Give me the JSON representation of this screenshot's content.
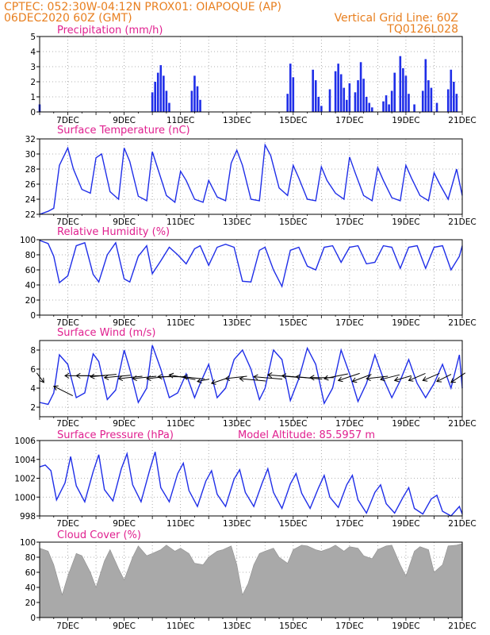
{
  "header": {
    "line1": "CPTEC:  052:30W-04:12N  PROX01: OIAPOQUE (AP)",
    "line2": "06DEC2020 60Z (GMT)",
    "vgrid": "Vertical Grid Line: 60Z",
    "code": "TQ0126L028"
  },
  "colors": {
    "header": "#e87f1f",
    "title": "#e0208f",
    "series": "#1f2ee8",
    "cloud": "#a9a9a9"
  },
  "x_axis": {
    "days": [
      "7DEC",
      "9DEC",
      "11DEC",
      "13DEC",
      "15DEC",
      "17DEC",
      "19DEC",
      "21DEC"
    ],
    "start_day": 6.0,
    "end_day": 21.0
  },
  "chart_data": [
    {
      "id": "precip",
      "type": "bar",
      "title": "Precipitation (mm/h)",
      "ylim": [
        0,
        5
      ],
      "yticks": [
        "0",
        "1",
        "2",
        "3",
        "4",
        "5"
      ],
      "x_days": [
        6.0,
        10.0,
        10.1,
        10.2,
        10.3,
        10.4,
        10.5,
        10.6,
        11.4,
        11.5,
        11.6,
        11.7,
        14.8,
        14.9,
        15.0,
        15.7,
        15.8,
        15.9,
        16.0,
        16.3,
        16.5,
        16.6,
        16.7,
        16.8,
        16.9,
        17.0,
        17.2,
        17.3,
        17.4,
        17.5,
        17.6,
        17.7,
        17.8,
        18.2,
        18.3,
        18.4,
        18.5,
        18.6,
        18.8,
        18.9,
        19.0,
        19.1,
        19.3,
        19.6,
        19.7,
        19.8,
        19.9,
        20.1,
        20.5,
        20.6,
        20.7,
        20.8
      ],
      "values": [
        0.5,
        1.3,
        2.0,
        2.6,
        3.1,
        2.4,
        1.4,
        0.6,
        1.4,
        2.4,
        1.7,
        0.8,
        1.2,
        3.2,
        2.3,
        2.8,
        2.1,
        1.0,
        0.4,
        1.5,
        2.7,
        3.2,
        2.5,
        1.6,
        0.8,
        1.9,
        1.3,
        2.1,
        3.3,
        2.2,
        1.0,
        0.6,
        0.3,
        0.7,
        1.1,
        0.5,
        1.4,
        2.6,
        3.7,
        2.9,
        2.4,
        1.2,
        0.5,
        1.4,
        3.5,
        2.1,
        1.6,
        0.6,
        1.5,
        2.8,
        2.0,
        1.2
      ]
    },
    {
      "id": "temp",
      "type": "line",
      "title": "Surface Temperature (nC)",
      "ylim": [
        22,
        32
      ],
      "yticks": [
        "22",
        "24",
        "26",
        "28",
        "30",
        "32"
      ],
      "x_days": [
        6.0,
        6.3,
        6.5,
        6.7,
        7.0,
        7.2,
        7.5,
        7.8,
        8.0,
        8.2,
        8.5,
        8.8,
        9.0,
        9.2,
        9.5,
        9.8,
        10.0,
        10.2,
        10.5,
        10.8,
        11.0,
        11.2,
        11.5,
        11.8,
        12.0,
        12.3,
        12.6,
        12.8,
        13.0,
        13.2,
        13.5,
        13.8,
        14.0,
        14.2,
        14.5,
        14.8,
        15.0,
        15.2,
        15.5,
        15.8,
        16.0,
        16.2,
        16.5,
        16.8,
        17.0,
        17.2,
        17.5,
        17.8,
        18.0,
        18.2,
        18.5,
        18.8,
        19.0,
        19.2,
        19.5,
        19.8,
        20.0,
        20.2,
        20.5,
        20.8,
        21.0
      ],
      "values": [
        22.0,
        22.4,
        22.8,
        28.5,
        30.8,
        28.0,
        25.3,
        24.8,
        29.5,
        30.0,
        25.0,
        24.0,
        30.8,
        29.0,
        24.4,
        23.8,
        30.3,
        28.0,
        24.5,
        23.6,
        27.7,
        26.5,
        24.0,
        23.6,
        26.5,
        24.3,
        23.8,
        28.8,
        30.5,
        28.5,
        24.0,
        23.8,
        31.2,
        29.8,
        25.5,
        24.5,
        28.5,
        26.8,
        24.0,
        23.8,
        28.3,
        26.5,
        24.8,
        24.0,
        29.6,
        27.5,
        24.5,
        23.8,
        28.2,
        26.5,
        24.2,
        23.8,
        28.5,
        26.8,
        24.5,
        23.8,
        27.5,
        26.0,
        24.0,
        28.0,
        24.5
      ]
    },
    {
      "id": "rh",
      "type": "line",
      "title": "Relative Humidity (%)",
      "ylim": [
        0,
        100
      ],
      "yticks": [
        "0",
        "20",
        "40",
        "60",
        "80",
        "100"
      ],
      "x_days": [
        6.0,
        6.3,
        6.5,
        6.7,
        7.0,
        7.3,
        7.6,
        7.9,
        8.1,
        8.4,
        8.7,
        9.0,
        9.2,
        9.5,
        9.8,
        10.0,
        10.3,
        10.6,
        10.9,
        11.2,
        11.5,
        11.7,
        12.0,
        12.3,
        12.6,
        12.9,
        13.2,
        13.5,
        13.8,
        14.0,
        14.3,
        14.6,
        14.9,
        15.2,
        15.5,
        15.8,
        16.1,
        16.4,
        16.7,
        17.0,
        17.3,
        17.6,
        17.9,
        18.2,
        18.5,
        18.8,
        19.1,
        19.4,
        19.7,
        20.0,
        20.3,
        20.6,
        20.9,
        21.0
      ],
      "values": [
        99,
        95,
        78,
        43,
        52,
        92,
        96,
        54,
        44,
        80,
        96,
        48,
        44,
        78,
        92,
        55,
        72,
        90,
        80,
        68,
        88,
        92,
        66,
        90,
        94,
        90,
        45,
        44,
        86,
        90,
        60,
        38,
        86,
        90,
        65,
        60,
        90,
        92,
        70,
        90,
        92,
        68,
        70,
        92,
        90,
        62,
        90,
        92,
        62,
        90,
        92,
        60,
        78,
        92
      ]
    },
    {
      "id": "wind",
      "type": "line",
      "title": "Surface Wind (m/s)",
      "ylim": [
        1,
        9
      ],
      "yticks": [
        "2",
        "4",
        "6",
        "8"
      ],
      "x_days": [
        6.0,
        6.3,
        6.5,
        6.7,
        7.0,
        7.3,
        7.6,
        7.9,
        8.1,
        8.4,
        8.7,
        9.0,
        9.2,
        9.5,
        9.8,
        10.0,
        10.3,
        10.6,
        10.9,
        11.2,
        11.5,
        11.7,
        12.0,
        12.3,
        12.6,
        12.9,
        13.2,
        13.5,
        13.8,
        14.0,
        14.3,
        14.6,
        14.9,
        15.2,
        15.5,
        15.8,
        16.1,
        16.4,
        16.7,
        17.0,
        17.3,
        17.6,
        17.9,
        18.2,
        18.5,
        18.8,
        19.1,
        19.4,
        19.7,
        20.0,
        20.3,
        20.6,
        20.9,
        21.0
      ],
      "values": [
        2.5,
        2.3,
        3.5,
        7.5,
        6.5,
        3.0,
        3.5,
        7.6,
        6.8,
        2.8,
        3.8,
        8.0,
        6.0,
        2.5,
        4.0,
        8.5,
        6.0,
        3.0,
        3.5,
        5.5,
        3.0,
        4.5,
        6.5,
        3.0,
        4.0,
        7.0,
        8.0,
        6.0,
        2.8,
        4.0,
        8.0,
        7.0,
        2.7,
        5.0,
        8.2,
        6.5,
        2.4,
        4.0,
        8.0,
        5.5,
        2.6,
        4.5,
        7.5,
        5.0,
        3.0,
        4.8,
        7.0,
        4.5,
        3.0,
        4.5,
        6.5,
        4.0,
        7.5,
        4.0
      ]
    },
    {
      "id": "wind_arrows",
      "type": "vector",
      "title": "",
      "x_days": [
        6.15,
        6.5,
        6.9,
        7.3,
        7.8,
        8.3,
        8.8,
        9.3,
        9.8,
        10.2,
        10.6,
        11.1,
        11.6,
        12.1,
        12.6,
        13.1,
        13.6,
        14.1,
        14.6,
        15.1,
        15.6,
        16.1,
        16.6,
        17.1,
        17.6,
        18.1,
        18.6,
        19.1,
        19.6,
        20.1,
        20.6
      ],
      "y_values": [
        4.6,
        4.2,
        5.3,
        5.3,
        5.2,
        5.1,
        5.0,
        5.0,
        5.0,
        5.2,
        5.4,
        5.2,
        4.7,
        4.5,
        5.0,
        5.0,
        5.2,
        5.4,
        5.3,
        5.2,
        5.1,
        5.0,
        4.8,
        4.7,
        5.0,
        4.9,
        4.8,
        4.8,
        4.8,
        4.7,
        4.6
      ],
      "u": [
        -0.3,
        0.8,
        1.1,
        1.2,
        1.1,
        1.1,
        1.0,
        1.0,
        1.0,
        1.2,
        1.1,
        0.9,
        0.5,
        0.6,
        0.9,
        1.1,
        1.2,
        1.2,
        1.2,
        1.1,
        1.0,
        1.0,
        0.9,
        0.8,
        0.9,
        0.8,
        0.7,
        0.7,
        0.7,
        0.6,
        0.6
      ],
      "v": [
        0.4,
        -0.4,
        0.0,
        0.0,
        0.1,
        0.1,
        0.1,
        0.1,
        0.1,
        0.0,
        -0.2,
        -0.1,
        0.1,
        0.2,
        0.1,
        -0.1,
        -0.1,
        -0.1,
        -0.1,
        -0.1,
        0.0,
        0.2,
        0.3,
        0.3,
        0.1,
        0.2,
        0.2,
        0.3,
        0.3,
        0.3,
        0.4
      ]
    },
    {
      "id": "pres",
      "type": "line",
      "title": "Surface Pressure (hPa)",
      "subtitle": "Model Altitude: 85.5957  m",
      "ylim": [
        998,
        1006
      ],
      "yticks": [
        "998",
        "1000",
        "1002",
        "1004",
        "1006"
      ],
      "x_days": [
        6.0,
        6.2,
        6.4,
        6.6,
        6.9,
        7.1,
        7.3,
        7.6,
        7.9,
        8.1,
        8.3,
        8.6,
        8.9,
        9.1,
        9.3,
        9.6,
        9.9,
        10.1,
        10.3,
        10.6,
        10.9,
        11.1,
        11.3,
        11.6,
        11.9,
        12.1,
        12.3,
        12.6,
        12.9,
        13.1,
        13.3,
        13.6,
        13.9,
        14.1,
        14.3,
        14.6,
        14.9,
        15.1,
        15.3,
        15.6,
        15.9,
        16.1,
        16.3,
        16.6,
        16.9,
        17.1,
        17.3,
        17.6,
        17.9,
        18.1,
        18.3,
        18.6,
        18.9,
        19.1,
        19.3,
        19.6,
        19.9,
        20.1,
        20.3,
        20.6,
        20.9,
        21.0
      ],
      "values": [
        1003.2,
        1003.4,
        1002.8,
        999.7,
        1001.5,
        1004.3,
        1001.2,
        999.5,
        1002.7,
        1004.5,
        1000.8,
        999.6,
        1003.0,
        1004.6,
        1001.3,
        999.5,
        1002.8,
        1004.8,
        1001.0,
        999.5,
        1002.5,
        1003.6,
        1000.7,
        999.0,
        1001.7,
        1002.8,
        1000.3,
        999.0,
        1001.9,
        1002.9,
        1000.5,
        999.0,
        1001.5,
        1003.0,
        1000.5,
        998.8,
        1001.4,
        1002.5,
        1000.4,
        998.8,
        1001.0,
        1002.3,
        1000.0,
        998.9,
        1001.3,
        1002.3,
        999.7,
        998.3,
        1000.5,
        1001.3,
        999.3,
        998.3,
        1000.0,
        1001.0,
        998.8,
        998.2,
        999.8,
        1000.2,
        998.5,
        998.0,
        999.0,
        998.2
      ]
    },
    {
      "id": "cloud",
      "type": "area",
      "title": "Cloud Cover (%)",
      "ylim": [
        0,
        100
      ],
      "yticks": [
        "0",
        "20",
        "40",
        "60",
        "80",
        "100"
      ],
      "x_days": [
        6.0,
        6.3,
        6.5,
        6.8,
        7.0,
        7.3,
        7.5,
        7.8,
        8.0,
        8.3,
        8.5,
        8.8,
        9.0,
        9.3,
        9.5,
        9.8,
        10.0,
        10.3,
        10.5,
        10.8,
        11.0,
        11.3,
        11.5,
        11.8,
        12.0,
        12.3,
        12.5,
        12.8,
        13.0,
        13.2,
        13.4,
        13.6,
        13.8,
        14.0,
        14.3,
        14.5,
        14.8,
        15.0,
        15.3,
        15.5,
        15.8,
        16.0,
        16.3,
        16.5,
        16.8,
        17.0,
        17.3,
        17.5,
        17.8,
        18.0,
        18.3,
        18.5,
        18.8,
        19.0,
        19.3,
        19.5,
        19.8,
        20.0,
        20.3,
        20.5,
        20.8,
        21.0
      ],
      "values": [
        92,
        88,
        70,
        30,
        55,
        85,
        82,
        60,
        40,
        75,
        90,
        65,
        50,
        80,
        95,
        82,
        85,
        90,
        96,
        88,
        92,
        85,
        72,
        70,
        80,
        88,
        90,
        95,
        70,
        30,
        45,
        70,
        85,
        88,
        92,
        80,
        72,
        90,
        96,
        95,
        90,
        88,
        92,
        96,
        88,
        94,
        92,
        82,
        78,
        90,
        95,
        96,
        70,
        55,
        88,
        94,
        90,
        60,
        70,
        95,
        96,
        98
      ]
    }
  ]
}
